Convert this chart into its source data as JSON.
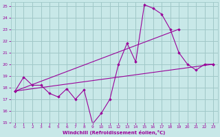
{
  "bg_color": "#c8e8e8",
  "grid_color": "#a0c8c8",
  "line_color": "#990099",
  "marker_color": "#990099",
  "xlabel": "Windchill (Refroidissement éolien,°C)",
  "xlabel_color": "#990099",
  "tick_color": "#990099",
  "xlim": [
    -0.5,
    23.5
  ],
  "ylim": [
    15,
    25.3
  ],
  "yticks": [
    15,
    16,
    17,
    18,
    19,
    20,
    21,
    22,
    23,
    24,
    25
  ],
  "xticks": [
    0,
    1,
    2,
    3,
    4,
    5,
    6,
    7,
    8,
    9,
    10,
    11,
    12,
    13,
    14,
    15,
    16,
    17,
    18,
    19,
    20,
    21,
    22,
    23
  ],
  "zigzag_x": [
    0,
    1,
    2,
    3,
    4,
    5,
    6,
    7,
    8,
    9,
    10,
    11,
    12,
    13,
    14,
    15,
    16,
    17,
    18,
    19,
    20,
    21,
    22,
    23
  ],
  "zigzag_y": [
    17.7,
    18.9,
    18.2,
    18.2,
    17.5,
    17.2,
    17.9,
    17.0,
    17.8,
    14.9,
    15.8,
    17.0,
    20.0,
    21.8,
    20.2,
    25.1,
    24.8,
    24.3,
    23.0,
    21.0,
    20.0,
    19.5,
    20.0,
    20.0
  ],
  "line1_x": [
    0,
    19
  ],
  "line1_y": [
    17.7,
    23.0
  ],
  "line2_x": [
    0,
    23
  ],
  "line2_y": [
    17.7,
    20.0
  ]
}
